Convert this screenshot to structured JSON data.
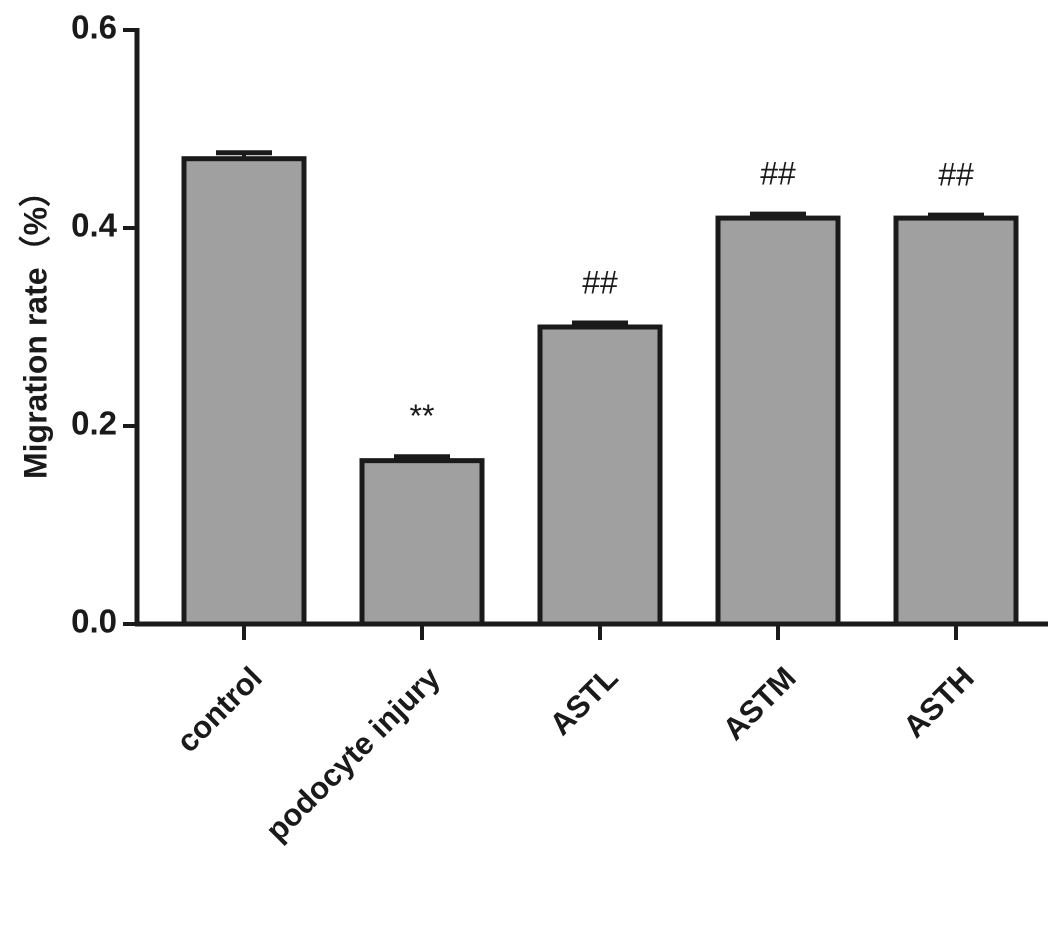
{
  "chart_data": {
    "type": "bar",
    "y_label": "Migration rate（%）",
    "categories": [
      "control",
      "podocyte injury",
      "ASTL",
      "ASTM",
      "ASTH"
    ],
    "values": [
      0.47,
      0.165,
      0.3,
      0.41,
      0.41
    ],
    "errors": [
      0.006,
      0.004,
      0.004,
      0.004,
      0.003
    ],
    "annotations": [
      null,
      "**",
      "##",
      "##",
      "##"
    ],
    "color": "#a0a0a0",
    "ylim": [
      0,
      0.6
    ],
    "yticks": [
      {
        "value": 0,
        "label": "0.0"
      },
      0.2,
      0.4,
      0.6
    ]
  }
}
